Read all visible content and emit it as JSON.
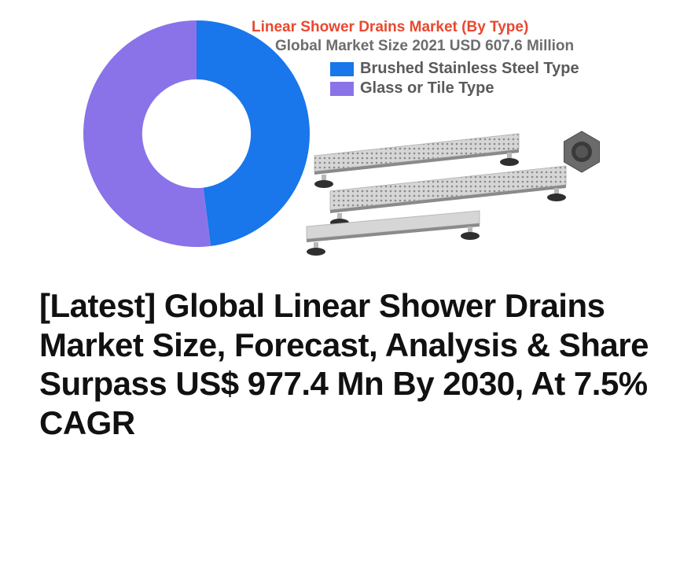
{
  "chart": {
    "type": "donut",
    "title": "Linear Shower Drains Market (By Type)",
    "title_color": "#e8482f",
    "title_fontsize": 19,
    "subtitle": "Global Market Size 2021 USD 607.6 Million",
    "subtitle_color": "#6d6d6d",
    "subtitle_fontsize": 19,
    "background_color": "#ffffff",
    "inner_radius_ratio": 0.48,
    "series": [
      {
        "label": "Brushed Stainless Steel Type",
        "value": 48,
        "color": "#1976eb"
      },
      {
        "label": "Glass or Tile Type",
        "value": 52,
        "color": "#8a73e8"
      }
    ],
    "legend": {
      "position": "right-top",
      "label_color": "#5a5a5a",
      "label_fontsize": 20,
      "swatch_w": 30,
      "swatch_h": 18
    }
  },
  "product_image": {
    "alt": "linear-shower-drain-products",
    "metal_light": "#d6d6d6",
    "metal_mid": "#b8b8b8",
    "metal_dark": "#8a8a8a",
    "foot_color": "#2f2f2f",
    "nut_color": "#6b6b6b"
  },
  "headline": {
    "text": "[Latest] Global Linear Shower Drains Market Size, Forecast, Analysis & Share Surpass US$ 977.4 Mn By 2030, At 7.5% CAGR",
    "color": "#111111",
    "fontsize": 42
  }
}
